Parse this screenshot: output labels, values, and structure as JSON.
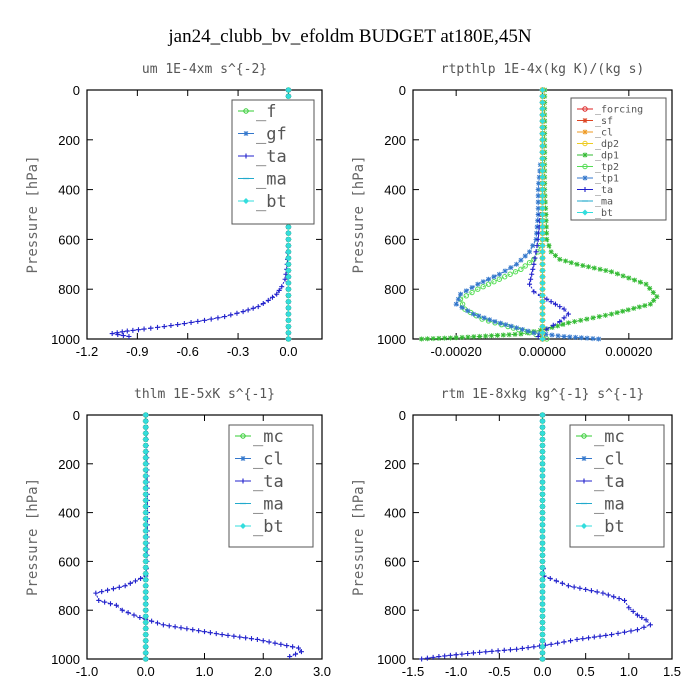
{
  "page_title": "jan24_clubb_bv_efoldm  BUDGET at180E,45N",
  "chart_data": [
    {
      "type": "line",
      "title": "um  1E-4xm s^{-2}",
      "ylabel": "Pressure [hPa]",
      "ylim": [
        1000,
        0
      ],
      "xlim": [
        -1.2,
        0.2
      ],
      "xticks": [
        -1.2,
        -0.9,
        -0.6,
        -0.3,
        0.0
      ],
      "xtick_labels": [
        "-1.2",
        "-0.9",
        "-0.6",
        "-0.3",
        "0.0"
      ],
      "yticks": [
        0,
        200,
        400,
        600,
        800,
        1000
      ],
      "legend_position": "top-right",
      "series": [
        {
          "name": "_f",
          "color": "#33cc33",
          "marker": "circle",
          "x": [
            0,
            0,
            0,
            0,
            0,
            0,
            0,
            0,
            0,
            0,
            0,
            0
          ],
          "y": [
            0,
            100,
            200,
            300,
            400,
            500,
            600,
            700,
            800,
            900,
            950,
            1000
          ]
        },
        {
          "name": "_gf",
          "color": "#3377cc",
          "marker": "star",
          "x": [
            0,
            0,
            0,
            0,
            0,
            0,
            0,
            0,
            0,
            0,
            0,
            0
          ],
          "y": [
            0,
            100,
            200,
            300,
            400,
            500,
            600,
            700,
            800,
            900,
            950,
            1000
          ]
        },
        {
          "name": "_ta",
          "color": "#2222cc",
          "marker": "plus",
          "x": [
            0,
            0,
            0,
            0,
            0,
            0,
            0,
            -0.005,
            -0.01,
            -0.02,
            -0.04,
            -0.07,
            -0.12,
            -0.18,
            -0.27,
            -0.38,
            -0.5,
            -0.62,
            -0.74,
            -0.86,
            -0.96,
            -1.05,
            -0.95
          ],
          "y": [
            0,
            100,
            200,
            300,
            400,
            500,
            600,
            680,
            720,
            760,
            790,
            820,
            845,
            870,
            890,
            910,
            925,
            938,
            950,
            960,
            968,
            978,
            990
          ]
        },
        {
          "name": "_ma",
          "color": "#22aacc",
          "marker": "dash",
          "x": [
            0,
            0,
            0,
            0,
            0,
            0,
            0,
            0,
            0,
            0,
            0
          ],
          "y": [
            0,
            100,
            200,
            300,
            400,
            500,
            600,
            700,
            800,
            900,
            1000
          ]
        },
        {
          "name": "_bt",
          "color": "#33dddd",
          "marker": "diamond",
          "x": [
            0,
            0,
            0,
            0,
            0,
            0,
            0,
            0,
            0,
            0,
            0
          ],
          "y": [
            0,
            100,
            200,
            300,
            400,
            500,
            600,
            700,
            800,
            900,
            1000
          ]
        }
      ]
    },
    {
      "type": "line",
      "title": "rtpthlp  1E-4x(kg K)/(kg s)",
      "ylabel": "Pressure [hPa]",
      "ylim": [
        1000,
        0
      ],
      "xlim": [
        -0.0003,
        0.0003
      ],
      "xticks": [
        -0.0002,
        0.0,
        0.0002
      ],
      "xtick_labels": [
        "-0.00020",
        "0.00000",
        "0.00020"
      ],
      "yticks": [
        0,
        200,
        400,
        600,
        800,
        1000
      ],
      "legend_position": "top-right",
      "series": [
        {
          "name": "_forcing",
          "color": "#dd2222",
          "marker": "circle",
          "x": [
            0,
            0,
            0,
            0,
            0,
            0,
            0,
            0,
            0,
            0,
            0
          ],
          "y": [
            0,
            100,
            200,
            300,
            400,
            500,
            600,
            700,
            800,
            900,
            1000
          ]
        },
        {
          "name": "_sf",
          "color": "#dd4422",
          "marker": "star",
          "x": [
            0,
            0,
            0,
            0,
            0,
            0,
            0,
            0,
            0,
            0,
            0
          ],
          "y": [
            0,
            100,
            200,
            300,
            400,
            500,
            600,
            700,
            800,
            900,
            1000
          ]
        },
        {
          "name": "_cl",
          "color": "#ee9922",
          "marker": "star",
          "x": [
            0,
            0,
            0,
            0,
            0,
            0,
            0,
            0,
            0,
            0,
            0
          ],
          "y": [
            0,
            100,
            200,
            300,
            400,
            500,
            600,
            700,
            800,
            900,
            1000
          ]
        },
        {
          "name": "_dp2",
          "color": "#eecc22",
          "marker": "circle",
          "x": [
            0,
            0,
            0,
            0,
            0,
            0,
            0,
            0,
            0,
            0,
            0
          ],
          "y": [
            0,
            100,
            200,
            300,
            400,
            500,
            600,
            700,
            800,
            900,
            1000
          ]
        },
        {
          "name": "_dp1",
          "color": "#33bb33",
          "marker": "star",
          "x": [
            5e-06,
            5e-06,
            5e-06,
            8e-06,
            1e-05,
            2e-05,
            4e-05,
            8e-05,
            0.00016,
            0.00024,
            0.000265,
            0.00025,
            0.00016,
            6e-05,
            1e-05,
            -5e-05,
            -0.0002,
            -0.00028
          ],
          "y": [
            0,
            200,
            400,
            500,
            600,
            650,
            680,
            700,
            730,
            780,
            830,
            860,
            900,
            935,
            960,
            980,
            995,
            1000
          ]
        },
        {
          "name": "_tp2",
          "color": "#55dd55",
          "marker": "circle",
          "x": [
            0,
            0,
            0,
            0,
            -1e-05,
            -2e-05,
            -5e-05,
            -0.0001,
            -0.00015,
            -0.00019,
            -0.00018,
            -0.00014,
            -8e-05,
            -3e-05,
            0,
            1e-05
          ],
          "y": [
            0,
            200,
            400,
            600,
            650,
            680,
            720,
            760,
            800,
            840,
            880,
            920,
            950,
            975,
            990,
            1000
          ]
        },
        {
          "name": "_tp1",
          "color": "#3377cc",
          "marker": "star",
          "x": [
            -5e-06,
            -1e-05,
            -1e-05,
            -1.5e-05,
            -3e-05,
            -6e-05,
            -0.0001,
            -0.00015,
            -0.00019,
            -0.0002,
            -0.00016,
            -0.00011,
            -6e-05,
            -2e-05,
            5e-05,
            0.00013
          ],
          "y": [
            300,
            400,
            500,
            600,
            650,
            700,
            740,
            780,
            820,
            860,
            900,
            930,
            955,
            975,
            990,
            1000
          ]
        },
        {
          "name": "_ta",
          "color": "#2222cc",
          "marker": "plus",
          "x": [
            -5e-06,
            -1e-05,
            -1.5e-05,
            -2e-05,
            -2.5e-05,
            -3e-05,
            -2e-05,
            1e-05,
            3e-05,
            5e-05,
            6e-05,
            4e-05,
            1e-05,
            -1e-05
          ],
          "y": [
            500,
            600,
            650,
            700,
            740,
            780,
            810,
            840,
            860,
            880,
            900,
            930,
            960,
            990
          ]
        },
        {
          "name": "_ma",
          "color": "#22aacc",
          "marker": "dash",
          "x": [
            0,
            0,
            0,
            0,
            0,
            0,
            0,
            0,
            0,
            0,
            0
          ],
          "y": [
            0,
            100,
            200,
            300,
            400,
            500,
            600,
            700,
            800,
            900,
            1000
          ]
        },
        {
          "name": "_bt",
          "color": "#33dddd",
          "marker": "diamond",
          "x": [
            0,
            0,
            0,
            0,
            0,
            0,
            0,
            0,
            0,
            0,
            0
          ],
          "y": [
            0,
            100,
            200,
            300,
            400,
            500,
            600,
            700,
            800,
            900,
            1000
          ]
        }
      ]
    },
    {
      "type": "line",
      "title": "thlm  1E-5xK s^{-1}",
      "ylabel": "Pressure [hPa]",
      "ylim": [
        1000,
        0
      ],
      "xlim": [
        -1.0,
        3.0
      ],
      "xticks": [
        -1.0,
        0.0,
        1.0,
        2.0,
        3.0
      ],
      "xtick_labels": [
        "-1.0",
        "0.0",
        "1.0",
        "2.0",
        "3.0"
      ],
      "yticks": [
        0,
        200,
        400,
        600,
        800,
        1000
      ],
      "legend_position": "top-right",
      "series": [
        {
          "name": "_mc",
          "color": "#33cc33",
          "marker": "circle",
          "x": [
            0,
            0,
            0,
            0,
            0,
            0,
            0,
            0,
            0,
            0,
            0
          ],
          "y": [
            0,
            100,
            200,
            300,
            400,
            500,
            600,
            700,
            800,
            900,
            1000
          ]
        },
        {
          "name": "_cl",
          "color": "#3377cc",
          "marker": "star",
          "x": [
            0,
            0,
            0,
            0,
            0,
            0,
            0,
            0,
            0,
            0,
            0
          ],
          "y": [
            0,
            100,
            200,
            300,
            400,
            500,
            600,
            700,
            800,
            900,
            1000
          ]
        },
        {
          "name": "_ta",
          "color": "#2222cc",
          "marker": "plus",
          "x": [
            0,
            0.02,
            0.03,
            0.02,
            0,
            -0.35,
            -0.85,
            -0.8,
            -0.5,
            -0.4,
            -0.1,
            0.3,
            0.8,
            1.3,
            1.9,
            2.3,
            2.6,
            2.65,
            2.45
          ],
          "y": [
            0,
            200,
            400,
            600,
            660,
            700,
            730,
            760,
            780,
            800,
            830,
            860,
            880,
            900,
            920,
            940,
            955,
            970,
            990
          ]
        },
        {
          "name": "_ma",
          "color": "#22aacc",
          "marker": "dash",
          "x": [
            0,
            0,
            0,
            0,
            0,
            0,
            0,
            0,
            0,
            0,
            0
          ],
          "y": [
            0,
            100,
            200,
            300,
            400,
            500,
            600,
            700,
            800,
            900,
            1000
          ]
        },
        {
          "name": "_bt",
          "color": "#33dddd",
          "marker": "diamond",
          "x": [
            0,
            0,
            0,
            0,
            0,
            0,
            0,
            0,
            0,
            0,
            0
          ],
          "y": [
            0,
            100,
            200,
            300,
            400,
            500,
            600,
            700,
            800,
            900,
            1000
          ]
        }
      ]
    },
    {
      "type": "line",
      "title": "rtm  1E-8xkg kg^{-1} s^{-1}",
      "ylabel": "Pressure [hPa]",
      "ylim": [
        1000,
        0
      ],
      "xlim": [
        -1.5,
        1.5
      ],
      "xticks": [
        -1.5,
        -1.0,
        -0.5,
        0.0,
        0.5,
        1.0,
        1.5
      ],
      "xtick_labels": [
        "-1.5",
        "-1.0",
        "-0.5",
        "0.0",
        "0.5",
        "1.0",
        "1.5"
      ],
      "yticks": [
        0,
        200,
        400,
        600,
        800,
        1000
      ],
      "legend_position": "top-right",
      "series": [
        {
          "name": "_mc",
          "color": "#33cc33",
          "marker": "circle",
          "x": [
            0,
            0,
            0,
            0,
            0,
            0,
            0,
            0,
            0,
            0,
            0
          ],
          "y": [
            0,
            100,
            200,
            300,
            400,
            500,
            600,
            700,
            800,
            900,
            1000
          ]
        },
        {
          "name": "_cl",
          "color": "#3377cc",
          "marker": "star",
          "x": [
            0,
            0,
            0,
            0,
            0,
            0,
            0,
            0,
            0,
            0,
            0
          ],
          "y": [
            0,
            100,
            200,
            300,
            400,
            500,
            600,
            700,
            800,
            900,
            1000
          ]
        },
        {
          "name": "_ta",
          "color": "#2222cc",
          "marker": "plus",
          "x": [
            0,
            0,
            0,
            0,
            0.02,
            0.3,
            0.7,
            0.95,
            1.0,
            1.1,
            1.2,
            1.25,
            1.1,
            0.8,
            0.4,
            0.1,
            -0.3,
            -0.8,
            -1.2,
            -1.4
          ],
          "y": [
            0,
            200,
            400,
            600,
            660,
            700,
            730,
            760,
            790,
            820,
            840,
            860,
            880,
            900,
            920,
            940,
            960,
            975,
            990,
            1000
          ]
        },
        {
          "name": "_ma",
          "color": "#22aacc",
          "marker": "dash",
          "x": [
            0,
            0,
            0,
            0,
            0,
            0,
            0,
            0,
            0,
            0,
            0
          ],
          "y": [
            0,
            100,
            200,
            300,
            400,
            500,
            600,
            700,
            800,
            900,
            1000
          ]
        },
        {
          "name": "_bt",
          "color": "#33dddd",
          "marker": "diamond",
          "x": [
            0,
            0,
            0,
            0,
            0,
            0,
            0,
            0,
            0,
            0,
            0
          ],
          "y": [
            0,
            100,
            200,
            300,
            400,
            500,
            600,
            700,
            800,
            900,
            1000
          ]
        }
      ]
    }
  ]
}
